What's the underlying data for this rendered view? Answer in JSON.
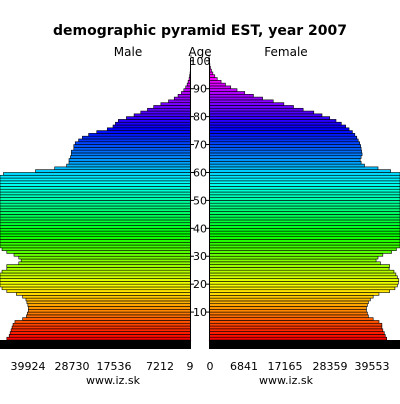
{
  "chart_data": {
    "type": "population-pyramid",
    "title": "demographic pyramid EST, year 2007",
    "left_label": "Male",
    "center_label": "Age",
    "right_label": "Female",
    "source_left": "www.iz.sk",
    "source_right": "www.iz.sk",
    "age_ticks": [
      10,
      20,
      30,
      40,
      50,
      60,
      70,
      80,
      90,
      100
    ],
    "male_axis_ticks": [
      "39924",
      "28730",
      "17536",
      "7212",
      "9"
    ],
    "female_axis_ticks": [
      "0",
      "6841",
      "17165",
      "28359",
      "39553"
    ],
    "male_max": 39924,
    "female_max": 39553,
    "male_values": [
      38500,
      38000,
      37800,
      37600,
      37400,
      37200,
      36800,
      35200,
      34400,
      34200,
      34000,
      34000,
      34100,
      34300,
      34500,
      35200,
      36500,
      38500,
      39500,
      40200,
      40400,
      40500,
      40300,
      40000,
      39500,
      38500,
      38500,
      36000,
      35500,
      36000,
      37000,
      38500,
      39500,
      40200,
      41000,
      41500,
      41800,
      42200,
      42500,
      42500,
      42500,
      42600,
      42700,
      42500,
      42300,
      42100,
      42000,
      41800,
      41500,
      41000,
      41500,
      41800,
      41700,
      41700,
      41800,
      41800,
      41500,
      40700,
      40000,
      39200,
      32500,
      28500,
      26000,
      25500,
      25500,
      25200,
      25000,
      25000,
      24500,
      24500,
      24200,
      23500,
      22700,
      21400,
      19700,
      17500,
      16300,
      15800,
      15200,
      13500,
      11900,
      10500,
      9100,
      7800,
      6300,
      4700,
      3500,
      2700,
      2000,
      1500,
      1100,
      800,
      600,
      400,
      300,
      200,
      150,
      100,
      60,
      40,
      20,
      10
    ],
    "female_values": [
      36800,
      36500,
      36300,
      36000,
      35800,
      35800,
      35200,
      34000,
      33000,
      32800,
      32600,
      32600,
      32800,
      33000,
      33400,
      34000,
      35200,
      37400,
      38500,
      39000,
      39200,
      39300,
      39000,
      38700,
      38300,
      37300,
      37400,
      35500,
      34600,
      35000,
      36000,
      37800,
      38800,
      39600,
      40500,
      41200,
      41500,
      41900,
      42200,
      42300,
      42300,
      42300,
      42400,
      42200,
      42000,
      41800,
      41800,
      41800,
      41600,
      41200,
      41700,
      42200,
      42400,
      42500,
      42600,
      42700,
      42600,
      42400,
      42000,
      41500,
      37600,
      35000,
      32200,
      31500,
      31300,
      31500,
      31700,
      31600,
      31500,
      31400,
      31200,
      30900,
      30600,
      30200,
      29700,
      29000,
      28300,
      27400,
      26300,
      25000,
      23400,
      21700,
      19500,
      17500,
      15500,
      13300,
      11100,
      9200,
      7400,
      5800,
      4500,
      3400,
      2500,
      1700,
      1200,
      800,
      500,
      300,
      180,
      100,
      50,
      20
    ]
  }
}
